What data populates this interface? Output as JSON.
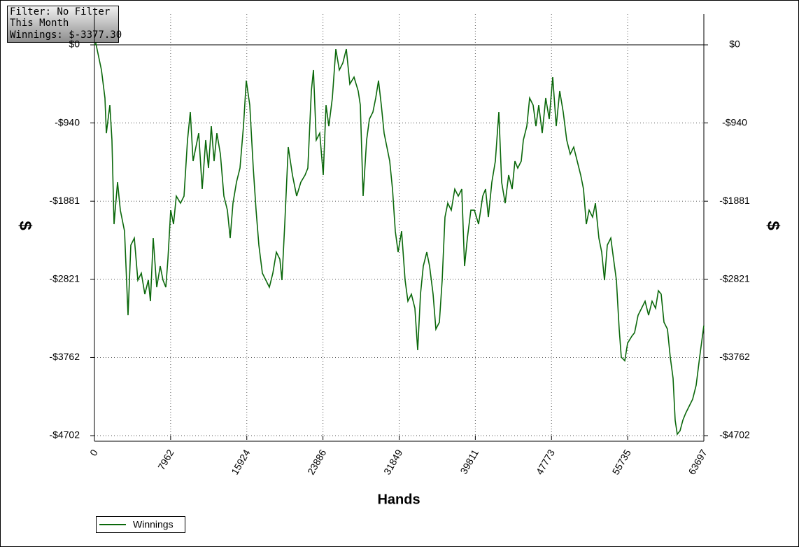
{
  "chart_data": {
    "type": "line",
    "info": [
      "Filter: No Filter",
      "This Month",
      "Winnings: $-3377.30"
    ],
    "x_label": "Hands",
    "y_label": "$",
    "y2_label": "$",
    "xlim": [
      0,
      63697
    ],
    "xticks": [
      0,
      7962,
      15924,
      23886,
      31849,
      39811,
      47773,
      55735,
      63697
    ],
    "ylim": [
      -4702,
      371
    ],
    "yticks": [
      {
        "value": 0,
        "label": "$0"
      },
      {
        "value": -940,
        "label": "-$940"
      },
      {
        "value": -1881,
        "label": "-$1881"
      },
      {
        "value": -2821,
        "label": "-$2821"
      },
      {
        "value": -3762,
        "label": "-$3762"
      },
      {
        "value": -4702,
        "label": "-$4702"
      }
    ],
    "grid": true,
    "legend": "bottom-left",
    "series": [
      {
        "name": "Winnings",
        "color": "#0b680b",
        "x": [
          0,
          146,
          731,
          1097,
          1243,
          1609,
          1828,
          2048,
          2413,
          2706,
          3145,
          3510,
          3803,
          4168,
          4534,
          4900,
          5265,
          5631,
          5850,
          6143,
          6509,
          6874,
          7167,
          7459,
          7679,
          7971,
          8264,
          8556,
          8995,
          9361,
          9726,
          10019,
          10311,
          10604,
          10896,
          11262,
          11628,
          11920,
          12213,
          12505,
          12798,
          13163,
          13529,
          13895,
          14187,
          14480,
          14845,
          15211,
          15577,
          15869,
          16235,
          16600,
          16893,
          17186,
          17551,
          17917,
          18283,
          18648,
          19014,
          19379,
          19599,
          19891,
          20257,
          20696,
          21135,
          21573,
          22012,
          22305,
          22670,
          22890,
          23182,
          23548,
          23914,
          24206,
          24499,
          24864,
          25230,
          25596,
          25961,
          26327,
          26692,
          27131,
          27570,
          27789,
          28082,
          28448,
          28740,
          29106,
          29398,
          29691,
          29983,
          30276,
          30568,
          30861,
          31153,
          31446,
          31738,
          32104,
          32470,
          32762,
          33128,
          33494,
          33786,
          34079,
          34369,
          34735,
          35030,
          35395,
          35688,
          36053,
          36346,
          36638,
          36931,
          37296,
          37662,
          38028,
          38393,
          38686,
          38978,
          39344,
          39710,
          40148,
          40587,
          40880,
          41172,
          41538,
          41903,
          42269,
          42562,
          42928,
          43293,
          43659,
          43951,
          44244,
          44609,
          44829,
          45194,
          45487,
          45852,
          46145,
          46438,
          46803,
          47169,
          47535,
          47900,
          48266,
          48631,
          48997,
          49363,
          49728,
          50094,
          50460,
          50825,
          51118,
          51410,
          51703,
          52068,
          52361,
          52727,
          53019,
          53312,
          53604,
          53970,
          54262,
          54555,
          54847,
          55067,
          55432,
          55725,
          56164,
          56456,
          56822,
          57187,
          57553,
          57918,
          58284,
          58650,
          58943,
          59235,
          59528,
          59893,
          60186,
          60479,
          60698,
          60917,
          61210,
          61502,
          61795,
          62160,
          62526,
          62892,
          63257,
          63697
        ],
        "values": [
          0,
          17,
          -303,
          -640,
          -1062,
          -725,
          -1146,
          -2157,
          -1652,
          -1989,
          -2242,
          -3253,
          -2410,
          -2326,
          -2831,
          -2747,
          -3000,
          -2831,
          -3084,
          -2326,
          -2916,
          -2663,
          -2831,
          -2916,
          -2579,
          -1989,
          -2157,
          -1820,
          -1905,
          -1820,
          -1146,
          -809,
          -1399,
          -1230,
          -1062,
          -1736,
          -1146,
          -1483,
          -978,
          -1399,
          -1062,
          -1315,
          -1820,
          -1989,
          -2326,
          -1905,
          -1652,
          -1483,
          -978,
          -430,
          -725,
          -1483,
          -1989,
          -2410,
          -2747,
          -2831,
          -2916,
          -2747,
          -2494,
          -2579,
          -2831,
          -2157,
          -1230,
          -1567,
          -1820,
          -1652,
          -1567,
          -1483,
          -556,
          -303,
          -1146,
          -1062,
          -1567,
          -725,
          -978,
          -640,
          -51,
          -303,
          -219,
          -51,
          -472,
          -388,
          -556,
          -725,
          -1820,
          -1146,
          -893,
          -809,
          -640,
          -430,
          -725,
          -1062,
          -1230,
          -1399,
          -1736,
          -2242,
          -2494,
          -2242,
          -2831,
          -3084,
          -3000,
          -3169,
          -3674,
          -3000,
          -2663,
          -2494,
          -2663,
          -3000,
          -3421,
          -3337,
          -2831,
          -2073,
          -1905,
          -1989,
          -1736,
          -1820,
          -1736,
          -2663,
          -2326,
          -1989,
          -1989,
          -2157,
          -1820,
          -1736,
          -2073,
          -1652,
          -1399,
          -809,
          -1652,
          -1905,
          -1567,
          -1736,
          -1399,
          -1483,
          -1399,
          -1146,
          -978,
          -640,
          -725,
          -978,
          -725,
          -1062,
          -640,
          -893,
          -388,
          -978,
          -556,
          -809,
          -1146,
          -1315,
          -1230,
          -1399,
          -1567,
          -1736,
          -2157,
          -1989,
          -2073,
          -1905,
          -2326,
          -2494,
          -2831,
          -2410,
          -2326,
          -2579,
          -2831,
          -3421,
          -3758,
          -3801,
          -3590,
          -3506,
          -3463,
          -3253,
          -3169,
          -3084,
          -3253,
          -3084,
          -3169,
          -2958,
          -3000,
          -3337,
          -3421,
          -3758,
          -4011,
          -4517,
          -4685,
          -4643,
          -4517,
          -4433,
          -4348,
          -4264,
          -4096,
          -3758,
          -3377.3
        ]
      }
    ]
  }
}
